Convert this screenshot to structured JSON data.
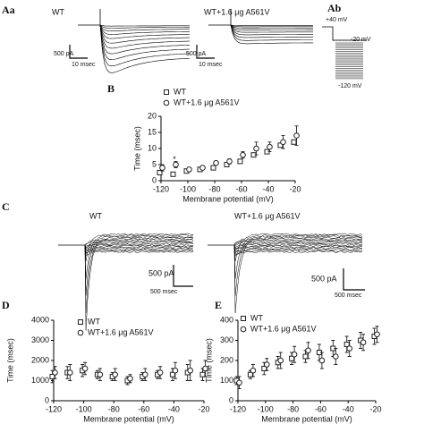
{
  "figure": {
    "aa": "Aa",
    "ab": "Ab",
    "b": "B",
    "c": "C",
    "d": "D",
    "e": "E",
    "wt": "WT",
    "mut": "WT+1.6 μg A561V",
    "a_current_scale": "500 pA",
    "a_time_scale": "10 msec",
    "v_top": "+40 mV",
    "v_hold": "-20 mV",
    "v_bottom": "-120 mV",
    "c_current_scale": "500 pA",
    "c_time_scale": "500 msec"
  },
  "chart_data": [
    {
      "type": "scatter",
      "panel": "B",
      "xlabel": "Membrane potential (mV)",
      "ylabel": "Time (msec)",
      "x": [
        -120,
        -110,
        -100,
        -90,
        -80,
        -70,
        -60,
        -50,
        -40,
        -30,
        -20
      ],
      "xlim": [
        -120,
        -20
      ],
      "xticks": [
        -120,
        -100,
        -80,
        -60,
        -40,
        -20
      ],
      "ylim": [
        0,
        20
      ],
      "yticks": [
        0,
        5,
        10,
        15,
        20
      ],
      "annotation": "*",
      "annotation_x": -110,
      "annotation_y": 6.5,
      "series": [
        {
          "name": "WT",
          "color": "#222",
          "marker": "square",
          "values": [
            2.5,
            2,
            3,
            3.5,
            4,
            5,
            6,
            8,
            9,
            11,
            12
          ]
        },
        {
          "name": "WT+1.6 μg A561V",
          "color": "#222",
          "marker": "circle",
          "values": [
            4,
            5,
            3.5,
            4,
            5.5,
            6,
            8,
            10,
            10.5,
            12,
            14
          ],
          "errors": [
            1,
            1,
            0.5,
            0.5,
            0.5,
            0.8,
            1,
            2,
            1.5,
            2,
            3
          ]
        }
      ]
    },
    {
      "type": "scatter",
      "panel": "D",
      "xlabel": "Membrane potential (mV)",
      "ylabel": "Time (msec)",
      "x": [
        -120,
        -110,
        -100,
        -90,
        -80,
        -70,
        -60,
        -50,
        -40,
        -30,
        -20
      ],
      "xlim": [
        -120,
        -20
      ],
      "xticks": [
        -120,
        -100,
        -80,
        -60,
        -40,
        -20
      ],
      "ylim": [
        0,
        4000
      ],
      "yticks": [
        0,
        1000,
        2000,
        3000,
        4000
      ],
      "series": [
        {
          "name": "WT",
          "color": "#222",
          "marker": "square",
          "values": [
            1200,
            1400,
            1500,
            1300,
            1200,
            1000,
            1200,
            1300,
            1300,
            1400,
            1300
          ],
          "errors": [
            300,
            300,
            300,
            200,
            200,
            200,
            200,
            200,
            300,
            400,
            300
          ]
        },
        {
          "name": "WT+1.6 μg A561V",
          "color": "#222",
          "marker": "circle",
          "values": [
            1400,
            1400,
            1600,
            1300,
            1300,
            1100,
            1300,
            1400,
            1500,
            1500,
            1600
          ],
          "errors": [
            300,
            400,
            300,
            300,
            300,
            200,
            300,
            300,
            400,
            500,
            400
          ]
        }
      ]
    },
    {
      "type": "scatter",
      "panel": "E",
      "xlabel": "Membrane potential (mV)",
      "ylabel": "Time (msec)",
      "x": [
        -120,
        -110,
        -100,
        -90,
        -80,
        -70,
        -60,
        -50,
        -40,
        -30,
        -20
      ],
      "xlim": [
        -120,
        -20
      ],
      "xticks": [
        -120,
        -100,
        -80,
        -60,
        -40,
        -20
      ],
      "ylim": [
        0,
        400
      ],
      "yticks": [
        0,
        100,
        200,
        300,
        400
      ],
      "series": [
        {
          "name": "WT",
          "color": "#222",
          "marker": "square",
          "values": [
            100,
            130,
            160,
            190,
            210,
            220,
            240,
            260,
            280,
            300,
            320
          ],
          "errors": [
            20,
            20,
            30,
            30,
            30,
            30,
            40,
            40,
            40,
            40,
            40
          ]
        },
        {
          "name": "WT+1.6 μg A561V",
          "color": "#222",
          "marker": "circle",
          "values": [
            90,
            150,
            180,
            200,
            230,
            250,
            200,
            220,
            260,
            290,
            330
          ],
          "errors": [
            30,
            30,
            30,
            40,
            40,
            40,
            40,
            40,
            40,
            40,
            40
          ]
        }
      ]
    }
  ]
}
